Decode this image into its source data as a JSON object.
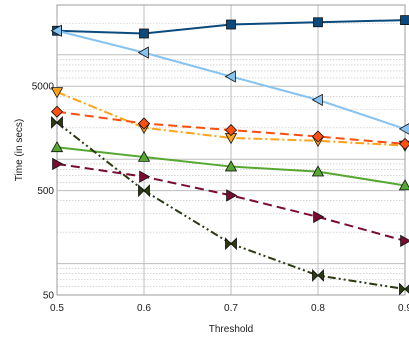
{
  "chart_data": {
    "type": "line",
    "xlabel": "Threshold",
    "ylabel": "Time (in secs)",
    "x": [
      0.5,
      0.6,
      0.7,
      0.8,
      0.9
    ],
    "x_tick_labels": [
      "0.5",
      "0.6",
      "0.7",
      "0.8",
      "0.9"
    ],
    "xlim": [
      0.5,
      0.9
    ],
    "y_scale": "log",
    "ylim": [
      50,
      30000
    ],
    "y_tick_labels": [
      {
        "value": 50,
        "label": "50"
      },
      {
        "value": 500,
        "label": "500"
      },
      {
        "value": 5000,
        "label": "5000"
      }
    ],
    "grid": true,
    "series": [
      {
        "color": "#0a4a7d",
        "dash": "solid",
        "marker": "square",
        "values": [
          17000,
          16000,
          19500,
          20500,
          21500
        ]
      },
      {
        "color": "#87c3f0",
        "dash": "solid",
        "marker": "triangle-left",
        "values": [
          17000,
          10500,
          6200,
          3700,
          1950
        ]
      },
      {
        "color": "#ffa31a",
        "dash": "dashdot",
        "marker": "triangle-down",
        "values": [
          4400,
          2000,
          1600,
          1500,
          1350
        ]
      },
      {
        "color": "#ff4f10",
        "dash": "dashed",
        "marker": "diamond",
        "values": [
          2850,
          2200,
          1900,
          1650,
          1400
        ]
      },
      {
        "color": "#57a832",
        "dash": "solid",
        "marker": "triangle-up",
        "values": [
          1300,
          1050,
          850,
          760,
          560
        ]
      },
      {
        "color": "#2b3a0f",
        "dash": "dashdotdot",
        "marker": "bowtie",
        "values": [
          2250,
          500,
          155,
          77,
          57
        ]
      },
      {
        "color": "#7a0c33",
        "dash": "dashed",
        "marker": "triangle-right",
        "values": [
          900,
          680,
          450,
          280,
          165
        ]
      }
    ]
  }
}
